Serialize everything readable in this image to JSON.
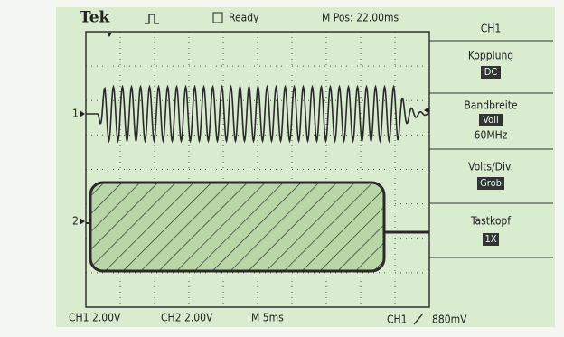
{
  "header": {
    "brand": "Tek",
    "status": "Ready",
    "position": "M Pos: 22.00ms"
  },
  "menu": {
    "title": "CH1",
    "items": [
      {
        "label": "Kopplung",
        "value": "DC"
      },
      {
        "label": "Bandbreite",
        "value": "Voll",
        "extra": "60MHz"
      },
      {
        "label": "Volts/Div.",
        "value": "Grob"
      },
      {
        "label": "Tastkopf",
        "value": "1X"
      }
    ]
  },
  "channels": [
    "1",
    "2"
  ],
  "footer": {
    "ch1": "CH1 2.00V",
    "ch2": "CH2 2.00V",
    "timebase": "M 5ms",
    "trigger_source": "CH1",
    "trigger_level": "880mV"
  }
}
